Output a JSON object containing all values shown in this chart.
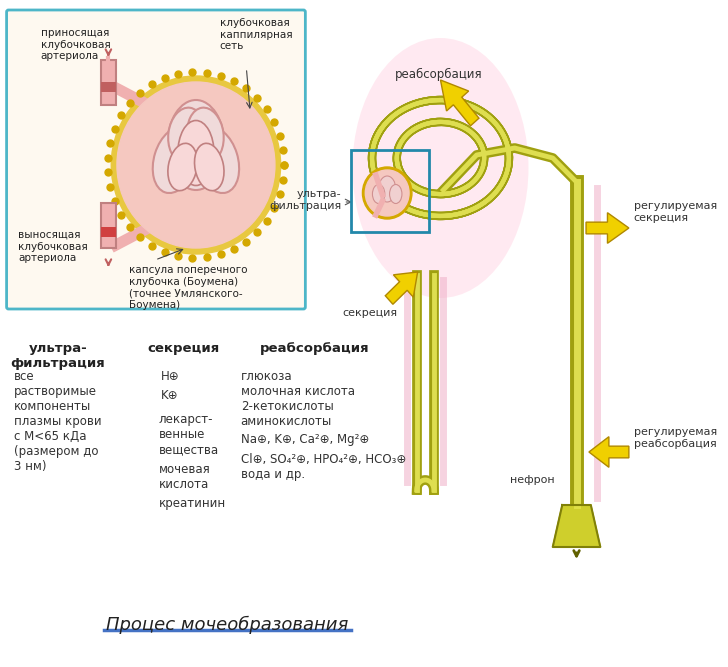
{
  "bg_color": "#ffffff",
  "title": "Процес мочеобразования",
  "title_underline_color": "#4472c4",
  "box_border_color": "#4db6c8",
  "box_bg_color": "#fef9f0",
  "label_prinosyashaya": "приносящая\nклубочковая\nартериола",
  "label_klubochkovaya_kap": "клубочковая\nкаппилярная\nсеть",
  "label_vynosyashaya": "выносящая\nклубочковая\nартериола",
  "label_kapsula": "капсула поперечного\nклубочка (Боумена)\n(точнее Умлянского-\nБоумена)",
  "label_reabsorbaciya_top": "реабсорбация",
  "label_reguliruemaya_sekretsiya": "регулируемая\nсекреция",
  "label_ultrafiltraciya": "ультра-\nфильтрация",
  "label_sekretsiya_mid": "секреция",
  "label_reguliruemaya_reabsorbaciya": "регулируемая\nреабсорбация",
  "label_nefron": "нефрон",
  "col1_header": "ультра-\nфильтрация",
  "col2_header": "секреция",
  "col3_header": "реабсорбация",
  "col1_text": "все\nрастворимые\nкомпоненты\nплазмы крови\nс М<65 кДа\n(размером до\n3 нм)",
  "H_plus": "H⊕",
  "K_plus": "K⊕",
  "sec_line2": "лекарст-\nвенные\nвещества",
  "sec_line3": "мочевая\nкислота",
  "sec_line4": "креатинин",
  "rea_line1": "глюкоза",
  "rea_line2": "молочная кислота",
  "rea_line3": "2-кетокислоты",
  "rea_line4": "аминокислоты",
  "rea_line5": "Na⊕, K⊕, Ca²⊕, Mg²⊕",
  "rea_line6": "Cl⊕, SO₄²⊕, HPO₄²⊕, HCO₃⊕",
  "rea_line7": "вода и др."
}
